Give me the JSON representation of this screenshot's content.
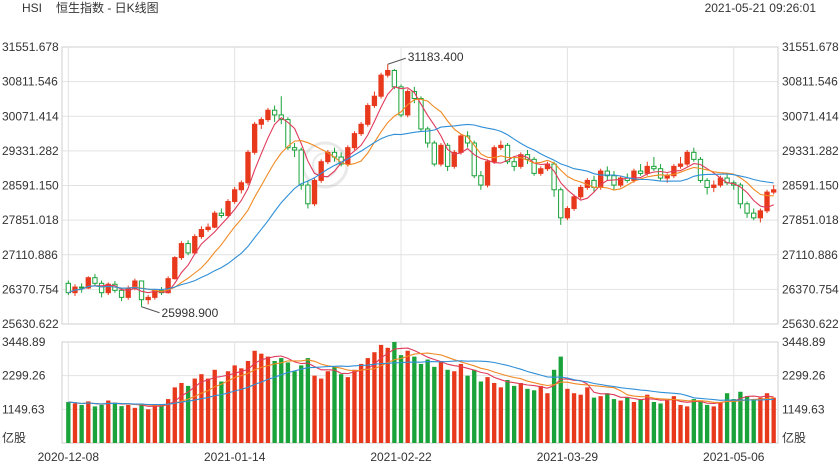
{
  "header": {
    "symbol": "HSI",
    "title": "恒生指数 - 日K线图",
    "datetime": "2021-05-21 09:26:01"
  },
  "colors": {
    "up": "#e8391d",
    "down": "#1aa33a",
    "ma5": "#e03a5a",
    "ma10": "#f08a24",
    "ma20": "#2f8fd8",
    "grid": "#e2e2e2"
  },
  "chart_data": {
    "type": "candlestick",
    "price_axis": {
      "labels": [
        "31551.678",
        "30811.546",
        "30071.414",
        "29331.282",
        "28591.150",
        "27851.018",
        "27110.886",
        "26370.754",
        "25630.622"
      ],
      "range": [
        25630.622,
        31551.678
      ]
    },
    "volume_axis": {
      "labels": [
        "3448.89",
        "2299.26",
        "1149.63"
      ],
      "range": [
        0,
        3448.89
      ],
      "unit": "亿股"
    },
    "x_labels": [
      {
        "index": 0,
        "label": "2020-12-08"
      },
      {
        "index": 25,
        "label": "2021-01-14"
      },
      {
        "index": 50,
        "label": "2021-02-22"
      },
      {
        "index": 75,
        "label": "2021-03-29"
      },
      {
        "index": 100,
        "label": "2021-05-06"
      }
    ],
    "annotations": {
      "high": {
        "index": 48,
        "label": "31183.400"
      },
      "low": {
        "index": 11,
        "label": "25998.900"
      }
    },
    "candles": [
      [
        26500,
        26300,
        26560,
        26250
      ],
      [
        26300,
        26420,
        26480,
        26230
      ],
      [
        26420,
        26400,
        26500,
        26300
      ],
      [
        26400,
        26620,
        26650,
        26380
      ],
      [
        26620,
        26500,
        26700,
        26450
      ],
      [
        26500,
        26300,
        26560,
        26200
      ],
      [
        26300,
        26480,
        26520,
        26250
      ],
      [
        26480,
        26350,
        26550,
        26300
      ],
      [
        26350,
        26200,
        26400,
        26120
      ],
      [
        26200,
        26400,
        26450,
        26150
      ],
      [
        26400,
        26550,
        26600,
        26350
      ],
      [
        26550,
        26150,
        26560,
        25998.9
      ],
      [
        26150,
        26200,
        26250,
        26050
      ],
      [
        26200,
        26350,
        26380,
        26150
      ],
      [
        26350,
        26300,
        26420,
        26250
      ],
      [
        26300,
        26600,
        26650,
        26280
      ],
      [
        26600,
        27050,
        27080,
        26580
      ],
      [
        27050,
        27350,
        27400,
        27000
      ],
      [
        27350,
        27150,
        27420,
        27100
      ],
      [
        27150,
        27500,
        27550,
        27120
      ],
      [
        27500,
        27650,
        27720,
        27450
      ],
      [
        27650,
        27700,
        27780,
        27600
      ],
      [
        27700,
        28000,
        28050,
        27680
      ],
      [
        28000,
        27950,
        28100,
        27900
      ],
      [
        27950,
        28250,
        28300,
        27920
      ],
      [
        28250,
        28500,
        28560,
        28200
      ],
      [
        28500,
        28650,
        28700,
        28420
      ],
      [
        28650,
        29300,
        29350,
        28600
      ],
      [
        29300,
        29900,
        29950,
        29250
      ],
      [
        29900,
        30000,
        30050,
        29800
      ],
      [
        30000,
        30200,
        30250,
        29950
      ],
      [
        30200,
        30100,
        30300,
        29950
      ],
      [
        30100,
        30000,
        30500,
        29900
      ],
      [
        30000,
        29400,
        30050,
        29350
      ],
      [
        29400,
        29350,
        29500,
        29200
      ],
      [
        29350,
        28600,
        29400,
        28500
      ],
      [
        28600,
        28200,
        28700,
        28100
      ],
      [
        28200,
        28700,
        28750,
        28150
      ],
      [
        28700,
        29100,
        29150,
        28650
      ],
      [
        29100,
        29300,
        29350,
        29050
      ],
      [
        29300,
        29200,
        29400,
        29100
      ],
      [
        29200,
        29050,
        29300,
        29000
      ],
      [
        29050,
        29400,
        29450,
        29000
      ],
      [
        29400,
        29700,
        29750,
        29350
      ],
      [
        29700,
        29900,
        29950,
        29650
      ],
      [
        29900,
        30300,
        30350,
        29850
      ],
      [
        30300,
        30500,
        30600,
        30250
      ],
      [
        30500,
        30950,
        31000,
        30450
      ],
      [
        30950,
        31050,
        31183.4,
        30900
      ],
      [
        31050,
        30700,
        31080,
        30650
      ],
      [
        30700,
        30100,
        30750,
        30050
      ],
      [
        30100,
        30600,
        30650,
        30050
      ],
      [
        30600,
        30450,
        30700,
        30350
      ],
      [
        30450,
        29800,
        30500,
        29750
      ],
      [
        29800,
        29500,
        29850,
        29400
      ],
      [
        29500,
        29050,
        29550,
        29000
      ],
      [
        29050,
        29450,
        29500,
        29000
      ],
      [
        29450,
        29000,
        29500,
        28900
      ],
      [
        29000,
        29300,
        29350,
        28950
      ],
      [
        29300,
        29650,
        29700,
        29250
      ],
      [
        29650,
        29500,
        29750,
        29400
      ],
      [
        29500,
        28800,
        29550,
        28750
      ],
      [
        28800,
        28600,
        28900,
        28500
      ],
      [
        28600,
        29100,
        29150,
        28550
      ],
      [
        29100,
        29400,
        29450,
        29050
      ],
      [
        29400,
        29450,
        29550,
        29350
      ],
      [
        29450,
        29100,
        29500,
        29050
      ],
      [
        29100,
        29000,
        29200,
        28900
      ],
      [
        29000,
        29250,
        29300,
        28950
      ],
      [
        29250,
        29150,
        29350,
        29050
      ],
      [
        29150,
        28850,
        29200,
        28800
      ],
      [
        28850,
        28950,
        29000,
        28800
      ],
      [
        28950,
        29050,
        29100,
        28900
      ],
      [
        29050,
        28500,
        29100,
        28350
      ],
      [
        28500,
        27900,
        28550,
        27750
      ],
      [
        27900,
        28100,
        28150,
        27850
      ],
      [
        28100,
        28350,
        28400,
        28050
      ],
      [
        28350,
        28550,
        28600,
        28300
      ],
      [
        28550,
        28700,
        28750,
        28500
      ],
      [
        28700,
        28550,
        28800,
        28450
      ],
      [
        28550,
        28900,
        28950,
        28500
      ],
      [
        28900,
        28800,
        29000,
        28700
      ],
      [
        28800,
        28600,
        28900,
        28500
      ],
      [
        28600,
        28750,
        28800,
        28550
      ],
      [
        28750,
        28700,
        28850,
        28650
      ],
      [
        28700,
        28900,
        28950,
        28650
      ],
      [
        28900,
        28850,
        29050,
        28800
      ],
      [
        28850,
        29000,
        29100,
        28800
      ],
      [
        29000,
        28950,
        29200,
        28900
      ],
      [
        28950,
        28750,
        29050,
        28700
      ],
      [
        28750,
        28800,
        28850,
        28650
      ],
      [
        28800,
        29000,
        29050,
        28750
      ],
      [
        29000,
        29050,
        29200,
        28950
      ],
      [
        29050,
        29300,
        29350,
        29000
      ],
      [
        29300,
        29150,
        29400,
        29100
      ],
      [
        29150,
        28700,
        29200,
        28650
      ],
      [
        28700,
        28550,
        28750,
        28400
      ],
      [
        28550,
        28600,
        28700,
        28450
      ],
      [
        28600,
        28750,
        28800,
        28550
      ],
      [
        28750,
        28650,
        28850,
        28600
      ],
      [
        28650,
        28600,
        28700,
        28500
      ],
      [
        28600,
        28200,
        28650,
        28100
      ],
      [
        28200,
        28000,
        28250,
        27900
      ],
      [
        28000,
        27900,
        28100,
        27850
      ],
      [
        27900,
        28050,
        28100,
        27800
      ],
      [
        28050,
        28450,
        28500,
        28000
      ],
      [
        28450,
        28500,
        28600,
        28400
      ]
    ],
    "volume": [
      1400,
      1350,
      1300,
      1420,
      1250,
      1300,
      1450,
      1380,
      1260,
      1300,
      1200,
      1350,
      1150,
      1280,
      1300,
      1500,
      1900,
      2050,
      1950,
      2200,
      2350,
      2200,
      2500,
      2100,
      2450,
      2650,
      2550,
      2800,
      3150,
      3050,
      2950,
      2800,
      2900,
      2750,
      2450,
      2650,
      2900,
      2300,
      2200,
      2450,
      2600,
      2350,
      2250,
      2500,
      2700,
      2900,
      3100,
      3350,
      3250,
      3450,
      3000,
      3150,
      2950,
      2700,
      2850,
      2600,
      2800,
      2500,
      2450,
      2700,
      2300,
      2500,
      2100,
      2250,
      2050,
      1900,
      2150,
      1950,
      2050,
      1850,
      1800,
      1950,
      1700,
      2500,
      2950,
      1850,
      1700,
      1650,
      1900,
      1550,
      1600,
      1700,
      1500,
      1450,
      1550,
      1400,
      1500,
      1650,
      1400,
      1350,
      1450,
      1600,
      1300,
      1250,
      1500,
      1450,
      1300,
      1250,
      1400,
      1700,
      1500,
      1750,
      1600,
      1450,
      1550,
      1700,
      1550
    ]
  }
}
